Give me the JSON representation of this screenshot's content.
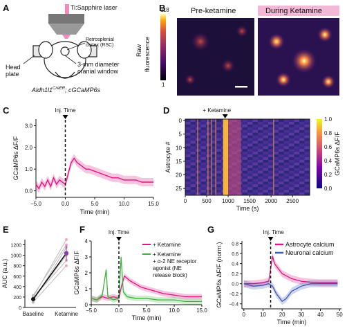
{
  "panels": {
    "A": "A",
    "B": "B",
    "C": "C",
    "D": "D",
    "E": "E",
    "F": "F",
    "G": "G"
  },
  "panelA": {
    "laser": "Ti:Sapphire laser",
    "rsc": "Retrosplenial",
    "rsc2": "cortex (RSC)",
    "headplate": "Head",
    "headplate2": "plate",
    "window": "3-mm diameter",
    "window2": "cranial window",
    "genotype_main": "Aldh1l1",
    "genotype_sup": "CreER",
    "genotype_rest": "; cGCaMP6s"
  },
  "panelB": {
    "pre": "Pre-ketamine",
    "during": "During Ketamine",
    "cbar_max": "118",
    "cbar_min": "1",
    "cbar_label1": "Raw",
    "cbar_label2": "fluorescence"
  },
  "chart_data": [
    {
      "panel": "C",
      "type": "line",
      "annotation": "Inj. Time",
      "xlabel": "Time (min)",
      "ylabel": "GCaMP6s ΔF/F",
      "xticks": [
        "−5.0",
        "0.0",
        "5.0",
        "10.0",
        "15.0"
      ],
      "yticks": [
        "0.0",
        "1.0",
        "2.0",
        "3.0"
      ],
      "xlim": [
        -5,
        15
      ],
      "ylim": [
        -0.3,
        3.3
      ],
      "series": [
        {
          "color": "#e0157f",
          "x": [
            -5,
            -4.5,
            -4,
            -3.5,
            -3,
            -2.5,
            -2,
            -1.5,
            -1,
            -0.5,
            0,
            0.3,
            0.6,
            1,
            1.5,
            2,
            2.5,
            3,
            3.5,
            4,
            5,
            6,
            7,
            8,
            9,
            10,
            11,
            12,
            13,
            14,
            15
          ],
          "y": [
            0.3,
            0.1,
            0.4,
            0.2,
            0.5,
            0.2,
            0.6,
            0.3,
            0.5,
            0.4,
            0.3,
            0.6,
            0.9,
            1.3,
            1.5,
            1.3,
            1.2,
            1.1,
            1.0,
            1.0,
            0.9,
            0.8,
            0.7,
            0.6,
            0.6,
            0.5,
            0.5,
            0.5,
            0.4,
            0.4,
            0.4
          ]
        }
      ]
    },
    {
      "panel": "D",
      "type": "heatmap",
      "annotation": "+ Ketamine",
      "xlabel": "Time (s)",
      "ylabel": "Astrocyte #",
      "xticks": [
        "0",
        "500",
        "1000",
        "1500",
        "2000",
        "2500"
      ],
      "yticks": [
        "0",
        "5",
        "10",
        "15",
        "20",
        "25"
      ],
      "xlim": [
        0,
        2900
      ],
      "ylim": [
        0,
        28
      ],
      "colorbar_label": "GCaMP6s ΔF/F",
      "colorbar_ticks": [
        "1.0",
        "0.8",
        "0.6",
        "0.4",
        "0.2",
        "0.0"
      ]
    },
    {
      "panel": "E",
      "type": "scatter",
      "ylabel": "AUC (a.u.)",
      "categories": [
        "Baseline",
        "Ketamine"
      ],
      "yticks": [
        "0",
        "200",
        "400",
        "600",
        "800",
        "1000",
        "1200"
      ],
      "ylim": [
        0,
        1300
      ],
      "series": [
        {
          "name": "mean",
          "values": [
            160,
            1040
          ]
        }
      ],
      "individual": [
        [
          120,
          1150
        ],
        [
          200,
          1300
        ],
        [
          180,
          900
        ],
        [
          150,
          1000
        ],
        [
          230,
          1200
        ],
        [
          100,
          800
        ]
      ]
    },
    {
      "panel": "F",
      "type": "line",
      "annotation": "Inj. Time",
      "xlabel": "Time (min)",
      "ylabel": "GCaMP6s ΔF/F",
      "xticks": [
        "−5.0",
        "0.0",
        "5.0",
        "10.0",
        "15.0"
      ],
      "yticks": [
        "0",
        "1",
        "2",
        "3",
        "4"
      ],
      "xlim": [
        -5,
        15
      ],
      "ylim": [
        0,
        4
      ],
      "legend": [
        "+ Ketamine",
        "+ Ketamine",
        "+ α-2 NE receptor",
        "agonist (NE",
        "release block)"
      ],
      "series": [
        {
          "name": "+ Ketamine",
          "color": "#e0157f",
          "x": [
            -5,
            -4,
            -3,
            -2,
            -1,
            0,
            0.5,
            1,
            2,
            3,
            4,
            5,
            6,
            8,
            10,
            12,
            15
          ],
          "y": [
            0.4,
            0.3,
            0.5,
            0.4,
            0.5,
            0.4,
            1.2,
            1.8,
            1.5,
            1.3,
            1.1,
            1.0,
            0.9,
            0.7,
            0.6,
            0.5,
            0.5
          ]
        },
        {
          "name": "+ Ketamine + α-2 NE receptor agonist (NE release block)",
          "color": "#3bb33b",
          "x": [
            -5,
            -4,
            -3,
            -2.3,
            -2,
            -1,
            0,
            0.4,
            0.8,
            1.5,
            3,
            5,
            7,
            10,
            12,
            15
          ],
          "y": [
            0.4,
            0.3,
            0.6,
            2.2,
            0.5,
            0.3,
            0.4,
            3.0,
            0.8,
            0.5,
            0.4,
            0.4,
            0.3,
            0.3,
            0.2,
            0.2
          ]
        }
      ]
    },
    {
      "panel": "G",
      "type": "line",
      "annotation": "Inj. Time",
      "xlabel": "Time (min)",
      "ylabel": "GCaMP6s ΔF/F (norm.)",
      "xticks": [
        "0",
        "10",
        "20",
        "30",
        "40",
        "50"
      ],
      "yticks": [
        "0.8",
        "0.6",
        "0.4",
        "0.2",
        "0.0",
        "−0.2",
        "−0.4"
      ],
      "xlim": [
        -1,
        51
      ],
      "ylim": [
        -0.5,
        0.85
      ],
      "series": [
        {
          "name": "Astrocyte calcium",
          "color": "#e0157f",
          "x": [
            0,
            5,
            10,
            13,
            15,
            16,
            18,
            20,
            25,
            30,
            35,
            40,
            45,
            49
          ],
          "y": [
            0.0,
            0.0,
            0.02,
            0.05,
            0.55,
            0.4,
            0.3,
            0.2,
            0.1,
            0.05,
            0.03,
            0.02,
            0.02,
            0.02
          ]
        },
        {
          "name": "Neuronal calcium",
          "color": "#3b59b3",
          "x": [
            0,
            5,
            10,
            13,
            15,
            17,
            20,
            22,
            25,
            30,
            35,
            40,
            45,
            49
          ],
          "y": [
            0.0,
            -0.05,
            -0.03,
            0.0,
            -0.05,
            -0.2,
            -0.35,
            -0.3,
            -0.15,
            -0.05,
            0.0,
            0.0,
            0.0,
            0.0
          ]
        }
      ]
    }
  ]
}
